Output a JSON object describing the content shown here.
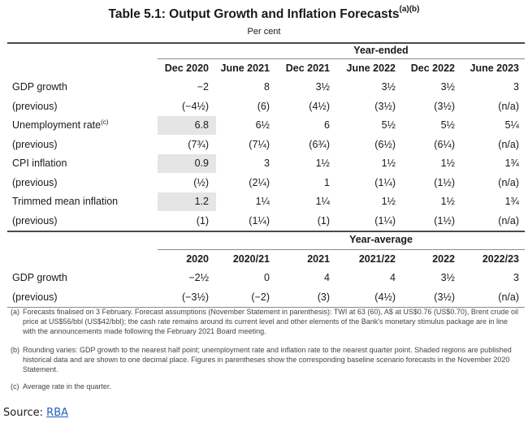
{
  "title": "Table 5.1: Output Growth and Inflation Forecasts",
  "title_note": "(a)(b)",
  "subtitle": "Per cent",
  "year_ended": {
    "header": "Year-ended",
    "columns": [
      "Dec 2020",
      "June 2021",
      "Dec 2021",
      "June 2022",
      "Dec 2022",
      "June 2023"
    ],
    "rows": [
      {
        "label": "GDP growth",
        "note": "",
        "values": [
          "−2",
          "8",
          "3½",
          "3½",
          "3½",
          "3"
        ],
        "shaded": false
      },
      {
        "label": "(previous)",
        "note": "",
        "values": [
          "(−4½)",
          "(6)",
          "(4½)",
          "(3½)",
          "(3½)",
          "(n/a)"
        ],
        "shaded": false
      },
      {
        "label": "Unemployment rate",
        "note": "(c)",
        "values": [
          "6.8",
          "6½",
          "6",
          "5½",
          "5½",
          "5¼"
        ],
        "shaded": true
      },
      {
        "label": "(previous)",
        "note": "",
        "values": [
          "(7¾)",
          "(7¼)",
          "(6¾)",
          "(6½)",
          "(6¼)",
          "(n/a)"
        ],
        "shaded": false
      },
      {
        "label": "CPI inflation",
        "note": "",
        "values": [
          "0.9",
          "3",
          "1½",
          "1½",
          "1½",
          "1¾"
        ],
        "shaded": true
      },
      {
        "label": "(previous)",
        "note": "",
        "values": [
          "(½)",
          "(2¼)",
          "1",
          "(1¼)",
          "(1½)",
          "(n/a)"
        ],
        "shaded": false
      },
      {
        "label": "Trimmed mean inflation",
        "note": "",
        "values": [
          "1.2",
          "1¼",
          "1¼",
          "1½",
          "1½",
          "1¾"
        ],
        "shaded": true
      },
      {
        "label": "(previous)",
        "note": "",
        "values": [
          "(1)",
          "(1¼)",
          "(1)",
          "(1¼)",
          "(1½)",
          "(n/a)"
        ],
        "shaded": false
      }
    ]
  },
  "year_average": {
    "header": "Year-average",
    "columns": [
      "2020",
      "2020/21",
      "2021",
      "2021/22",
      "2022",
      "2022/23"
    ],
    "rows": [
      {
        "label": "GDP growth",
        "values": [
          "−2½",
          "0",
          "4",
          "4",
          "3½",
          "3"
        ]
      },
      {
        "label": "(previous)",
        "values": [
          "(−3½)",
          "(−2)",
          "(3)",
          "(4½)",
          "(3½)",
          "(n/a)"
        ]
      }
    ]
  },
  "notes": [
    {
      "marker": "(a)",
      "text": "Forecasts finalised on 3 February. Forecast assumptions (November Statement in parenthesis): TWI at 63 (60), A$ at US$0.76 (US$0.70), Brent crude oil price at US$56/bbl (US$42/bbl); the cash rate remains around its current level and other elements of the Bank's monetary stimulus package are in line with the announcements made following the February 2021 Board meeting."
    },
    {
      "marker": "(b)",
      "text": "Rounding varies: GDP growth to the nearest half point; unemployment rate and inflation rate to the nearest quarter point. Shaded regions are published historical data and are shown to one decimal place. Figures in parentheses show the corresponding baseline scenario forecasts in the November 2020 Statement."
    },
    {
      "marker": "(c)",
      "text": "Average rate in the quarter."
    }
  ],
  "source": {
    "label": "Source:",
    "link_text": "RBA"
  }
}
